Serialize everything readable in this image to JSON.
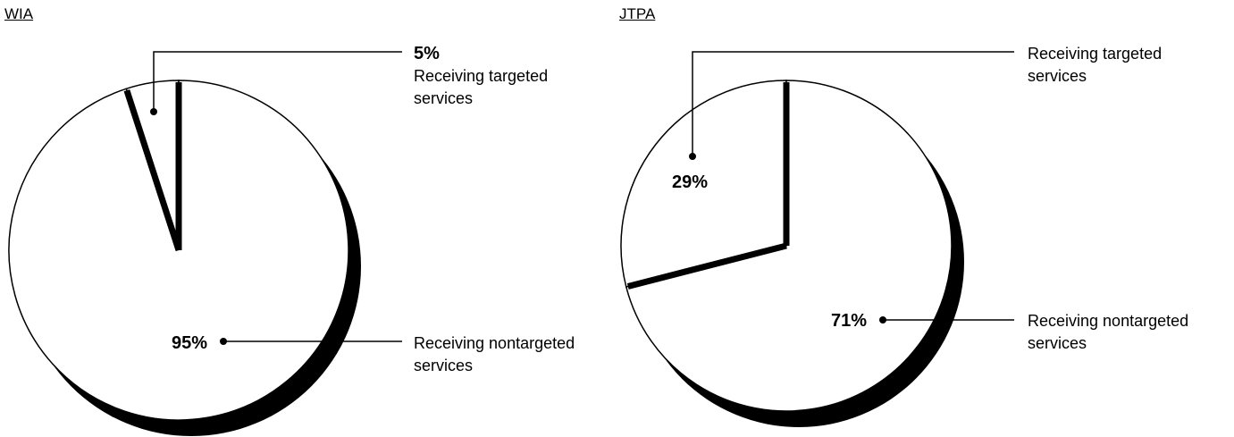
{
  "chart_data": [
    {
      "type": "pie",
      "title": "WIA",
      "categories": [
        "Receiving targeted services",
        "Receiving nontargeted services"
      ],
      "values": [
        5,
        95
      ],
      "value_labels": [
        "5%",
        "95%"
      ]
    },
    {
      "type": "pie",
      "title": "JTPA",
      "categories": [
        "Receiving targeted services",
        "Receiving nontargeted services"
      ],
      "values": [
        29,
        71
      ],
      "value_labels": [
        "29%",
        "71%"
      ]
    }
  ]
}
